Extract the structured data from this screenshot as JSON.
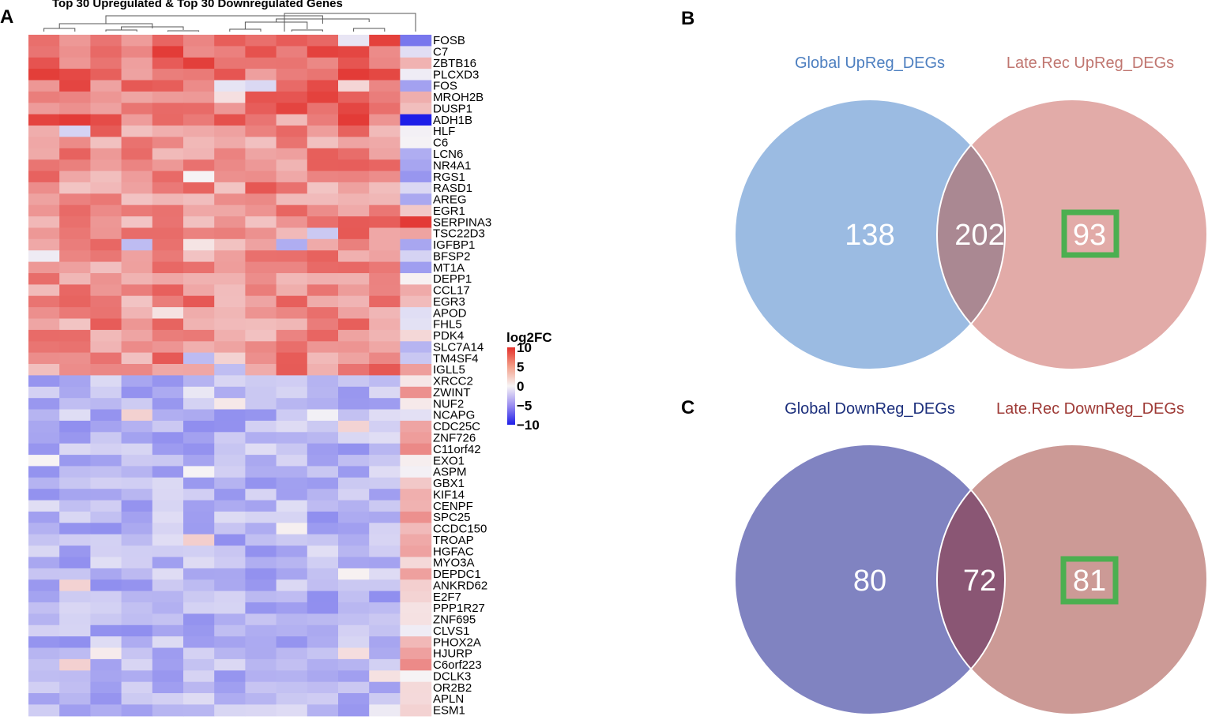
{
  "panels": {
    "a": "A",
    "b": "B",
    "c": "C"
  },
  "heatmap": {
    "title": "Top 30 Upregulated & Top 30 Downregulated Genes",
    "legend_title": "log2FC",
    "legend_ticks": [
      "10",
      "5",
      "0",
      "−5",
      "−10"
    ],
    "legend_values": [
      10,
      5,
      0,
      -5,
      -10
    ],
    "genes": [
      "FOSB",
      "C7",
      "ZBTB16",
      "PLCXD3",
      "FOS",
      "MROH2B",
      "DUSP1",
      "ADH1B",
      "HLF",
      "C6",
      "LCN6",
      "NR4A1",
      "RGS1",
      "RASD1",
      "AREG",
      "EGR1",
      "SERPINA3",
      "TSC22D3",
      "IGFBP1",
      "BFSP2",
      "MT1A",
      "DEPP1",
      "CCL17",
      "EGR3",
      "APOD",
      "FHL5",
      "PDK4",
      "SLC7A14",
      "TM4SF4",
      "IGLL5",
      "XRCC2",
      "ZWINT",
      "NUF2",
      "NCAPG",
      "CDC25C",
      "ZNF726",
      "C11orf42",
      "EXO1",
      "ASPM",
      "GBX1",
      "KIF14",
      "CENPF",
      "SPC25",
      "CCDC150",
      "TROAP",
      "HGFAC",
      "MYO3A",
      "DEPDC1",
      "ANKRD62",
      "E2F7",
      "PPP1R27",
      "ZNF695",
      "CLVS1",
      "PHOX2A",
      "HJURP",
      "C6orf223",
      "DCLK3",
      "OR2B2",
      "APLN",
      "ESM1"
    ],
    "n_samples": 13
  },
  "venn_up": {
    "left_label": "Global UpReg_DEGs",
    "right_label": "Late.Rec UpReg_DEGs",
    "left_only": "138",
    "overlap": "202",
    "right_only": "93",
    "colors": {
      "left": "#9bbbe2",
      "right": "#e2aba8",
      "overlap": "#aa8892",
      "left_label": "#4d7fc0",
      "right_label": "#c07670",
      "highlight": "#4caf50"
    }
  },
  "venn_down": {
    "left_label": "Global DownReg_DEGs",
    "right_label": "Late.Rec DownReg_DEGs",
    "left_only": "80",
    "overlap": "72",
    "right_only": "81",
    "colors": {
      "left": "#8083c1",
      "right": "#cc9a96",
      "overlap": "#8a5674",
      "left_label": "#1c2f7c",
      "right_label": "#9e3a36",
      "highlight": "#4caf50"
    }
  }
}
